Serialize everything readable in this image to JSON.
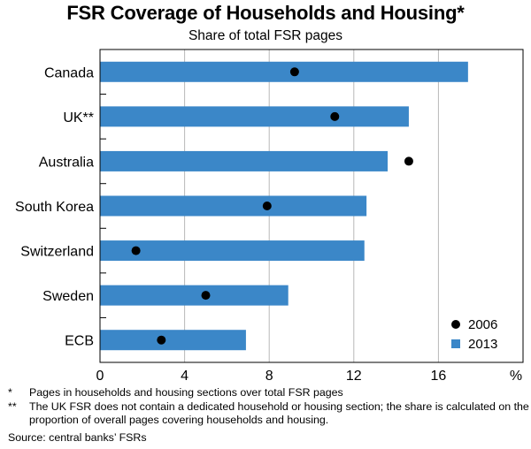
{
  "title": "FSR Coverage of Households and Housing*",
  "subtitle": "Share of total FSR pages",
  "unit_label": "%",
  "legend": [
    {
      "marker": "dot",
      "label": "2006",
      "color": "#000000"
    },
    {
      "marker": "square",
      "label": "2013",
      "color": "#3b87c8"
    }
  ],
  "footnotes": [
    {
      "mark": "*",
      "text": "Pages in households and housing sections over total FSR pages"
    },
    {
      "mark": "**",
      "text": "The UK FSR does not contain a dedicated household or housing section; the share is calculated on the proportion of overall pages covering households and housing."
    }
  ],
  "source": "Source: central banks’ FSRs",
  "chart_data": {
    "type": "bar",
    "orientation": "horizontal",
    "categories": [
      "Canada",
      "UK**",
      "Australia",
      "South Korea",
      "Switzerland",
      "Sweden",
      "ECB"
    ],
    "series": [
      {
        "name": "2013",
        "kind": "bar",
        "color": "#3b87c8",
        "values": [
          17.4,
          14.6,
          13.6,
          12.6,
          12.5,
          8.9,
          6.9
        ]
      },
      {
        "name": "2006",
        "kind": "dot",
        "color": "#000000",
        "values": [
          9.2,
          11.1,
          14.6,
          7.9,
          1.7,
          5.0,
          2.9
        ]
      }
    ],
    "xlim": [
      0,
      20
    ],
    "xticks": [
      "0",
      "4",
      "8",
      "12",
      "16"
    ],
    "xtick_values": [
      0,
      4,
      8,
      12,
      16
    ],
    "grid": true,
    "legend_position": "bottom-right"
  }
}
